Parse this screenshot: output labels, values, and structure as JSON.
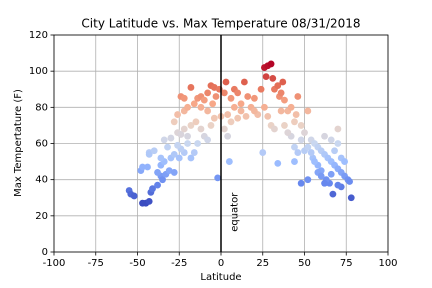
{
  "chart_data": {
    "type": "scatter",
    "title": "City Latitude vs. Max Temperature 08/31/2018",
    "x_label": "Latitude",
    "y_label": "Max Tempertature (F)",
    "annotation": "equator",
    "vline": 0,
    "xlim": [
      -100,
      100
    ],
    "xticks": [
      -100,
      -75,
      -50,
      -25,
      0,
      25,
      50,
      75,
      100
    ],
    "ylim": [
      0,
      120
    ],
    "yticks": [
      0,
      20,
      40,
      60,
      80,
      100,
      120
    ],
    "grid": true,
    "colormap": [
      "#3b4cc0",
      "#6788ee",
      "#9abbff",
      "#c9d7f0",
      "#edd1c2",
      "#f7a889",
      "#e26952",
      "#b40426"
    ],
    "x": [
      -55,
      -54,
      -52,
      -47,
      -45,
      -43,
      -42,
      -41,
      -38,
      -36,
      -35,
      -33,
      -31,
      -28,
      -48,
      -47,
      -44,
      -43,
      -43,
      -38,
      -36,
      -34,
      -30,
      -28,
      -25,
      -22,
      -18,
      -16,
      -14,
      -20,
      -24,
      -32,
      -34,
      -30,
      -26,
      -24,
      -22,
      -18,
      -15,
      -12,
      -10,
      -8,
      -28,
      -26,
      -22,
      -20,
      -16,
      -14,
      -12,
      -10,
      -8,
      -6,
      -4,
      -24,
      -22,
      -18,
      -12,
      -8,
      -5,
      -3,
      -1,
      -2,
      2,
      3,
      4,
      5,
      6,
      8,
      10,
      12,
      14,
      16,
      18,
      20,
      22,
      24,
      25,
      26,
      27,
      28,
      30,
      31,
      32,
      34,
      35,
      36,
      37,
      38,
      40,
      42,
      44,
      45,
      46,
      48,
      50,
      52,
      54,
      56,
      58,
      60,
      62,
      64,
      66,
      68,
      70,
      72,
      74,
      76,
      78,
      77,
      72,
      70,
      67,
      65,
      63,
      60,
      58,
      55,
      52,
      48,
      44,
      46,
      48,
      50,
      52,
      54,
      56,
      58,
      60,
      62,
      66,
      68,
      70,
      72,
      74,
      70,
      66,
      62,
      34,
      30,
      28,
      26,
      20,
      15,
      10,
      6,
      8,
      12,
      36,
      38,
      42,
      40,
      32,
      -6,
      -4,
      0,
      2,
      4,
      44,
      -36,
      -40,
      -20,
      -26
    ],
    "y": [
      34,
      32,
      31,
      27,
      27,
      28,
      33,
      35,
      37,
      42,
      40,
      43,
      45,
      44,
      45,
      47,
      47,
      55,
      54,
      44,
      48,
      50,
      52,
      54,
      52,
      55,
      52,
      55,
      60,
      60,
      57,
      58,
      62,
      63,
      66,
      65,
      68,
      70,
      72,
      68,
      64,
      62,
      72,
      76,
      78,
      80,
      82,
      85,
      86,
      84,
      88,
      92,
      91,
      86,
      85,
      91,
      80,
      78,
      82,
      86,
      90,
      41,
      88,
      94,
      76,
      50,
      85,
      90,
      88,
      82,
      94,
      86,
      80,
      85,
      76,
      90,
      55,
      102,
      97,
      103,
      104,
      96,
      90,
      92,
      86,
      88,
      94,
      84,
      78,
      80,
      72,
      76,
      86,
      70,
      66,
      78,
      62,
      60,
      58,
      56,
      54,
      52,
      50,
      48,
      46,
      44,
      42,
      40,
      30,
      39,
      36,
      37,
      32,
      38,
      40,
      45,
      48,
      52,
      40,
      38,
      58,
      55,
      62,
      56,
      58,
      55,
      50,
      44,
      42,
      38,
      43,
      56,
      60,
      52,
      50,
      68,
      62,
      64,
      49,
      70,
      75,
      80,
      78,
      75,
      74,
      72,
      80,
      78,
      78,
      70,
      64,
      66,
      68,
      70,
      74,
      75,
      68,
      64,
      50,
      52,
      56,
      64,
      59
    ]
  }
}
